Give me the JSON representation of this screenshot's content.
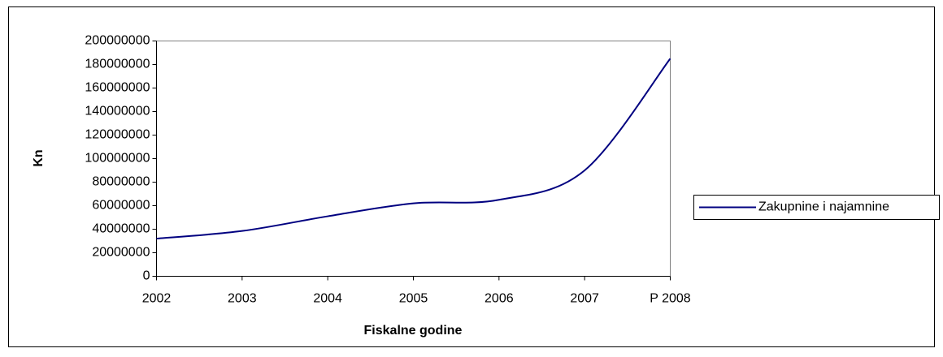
{
  "chart_data": {
    "type": "line",
    "x_label": "Fiskalne godine",
    "y_label": "Kn",
    "categories": [
      "2002",
      "2003",
      "2004",
      "2005",
      "2006",
      "2007",
      "P 2008"
    ],
    "series": [
      {
        "name": "Zakupnine i najamnine",
        "color": "#000080",
        "values": [
          32000000,
          38500000,
          51000000,
          62000000,
          65000000,
          90000000,
          185000000
        ]
      }
    ],
    "ylim": [
      0,
      200000000
    ],
    "yticks": [
      0,
      20000000,
      40000000,
      60000000,
      80000000,
      100000000,
      120000000,
      140000000,
      160000000,
      180000000,
      200000000
    ],
    "grid": false,
    "legend": "right"
  }
}
